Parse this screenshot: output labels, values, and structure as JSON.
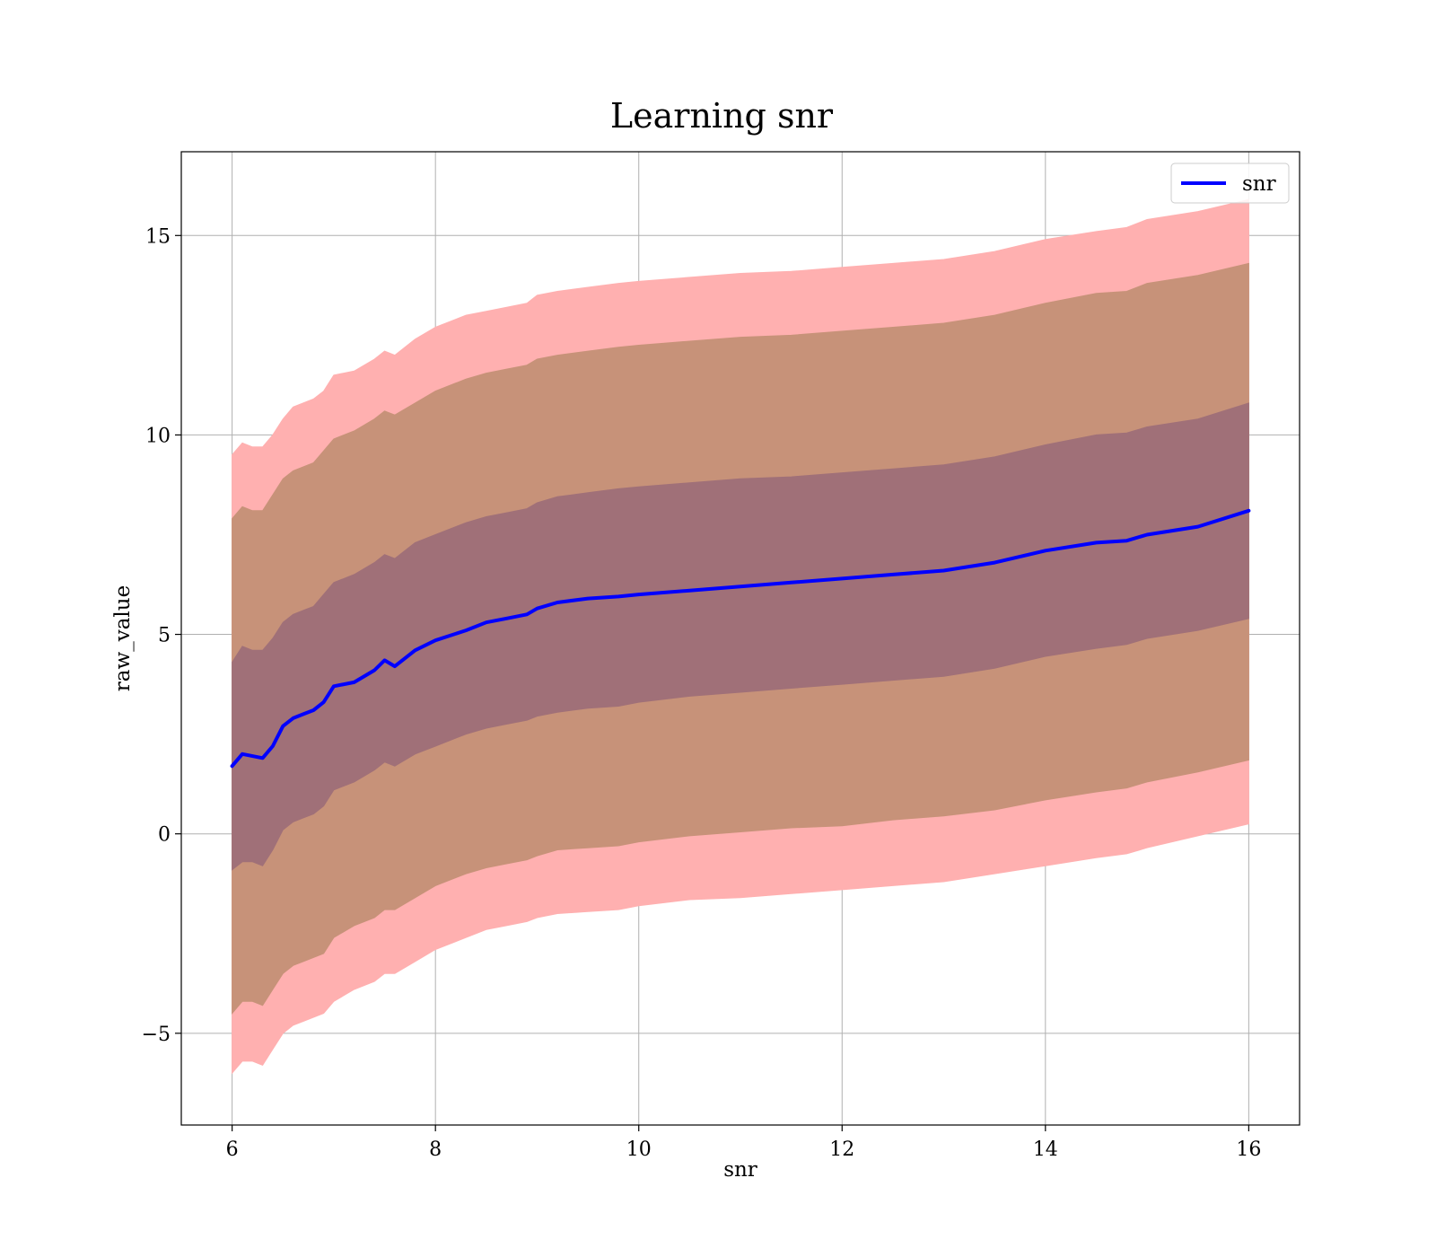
{
  "chart_data": {
    "type": "line",
    "title": "Learning snr",
    "xlabel": "snr",
    "ylabel": "raw_value",
    "xlim": [
      5.5,
      16.5
    ],
    "ylim": [
      -7.3,
      17.1
    ],
    "xticks": [
      6,
      8,
      10,
      12,
      14,
      16
    ],
    "yticks": [
      -5,
      0,
      5,
      10,
      15
    ],
    "xtick_labels": [
      "6",
      "8",
      "10",
      "12",
      "14",
      "16"
    ],
    "ytick_labels": [
      "−5",
      "0",
      "5",
      "10",
      "15"
    ],
    "grid": true,
    "legend": {
      "placement": "top-right",
      "entries": [
        "snr"
      ]
    },
    "colors": {
      "line": "#0000ff",
      "band_outer": "#ffb0b0",
      "band_middle": "#c79279",
      "band_inner": "#a07078"
    },
    "x": [
      6.0,
      6.1,
      6.2,
      6.3,
      6.4,
      6.5,
      6.6,
      6.7,
      6.8,
      6.9,
      7.0,
      7.2,
      7.4,
      7.5,
      7.6,
      7.8,
      8.0,
      8.3,
      8.5,
      8.7,
      8.9,
      9.0,
      9.2,
      9.5,
      9.8,
      10.0,
      10.5,
      11.0,
      11.5,
      12.0,
      12.5,
      13.0,
      13.5,
      14.0,
      14.5,
      14.8,
      15.0,
      15.5,
      16.0
    ],
    "series": [
      {
        "name": "snr",
        "values": [
          1.7,
          2.0,
          1.95,
          1.9,
          2.2,
          2.7,
          2.9,
          3.0,
          3.1,
          3.3,
          3.7,
          3.8,
          4.1,
          4.35,
          4.2,
          4.6,
          4.85,
          5.1,
          5.3,
          5.4,
          5.5,
          5.65,
          5.8,
          5.9,
          5.95,
          6.0,
          6.1,
          6.2,
          6.3,
          6.4,
          6.5,
          6.6,
          6.8,
          7.1,
          7.3,
          7.35,
          7.5,
          7.7,
          8.1
        ]
      }
    ],
    "bands": [
      {
        "role": "outer",
        "lower": [
          -6.0,
          -5.7,
          -5.7,
          -5.8,
          -5.4,
          -5.0,
          -4.8,
          -4.7,
          -4.6,
          -4.5,
          -4.2,
          -3.9,
          -3.7,
          -3.5,
          -3.5,
          -3.2,
          -2.9,
          -2.6,
          -2.4,
          -2.3,
          -2.2,
          -2.1,
          -2.0,
          -1.95,
          -1.9,
          -1.8,
          -1.65,
          -1.6,
          -1.5,
          -1.4,
          -1.3,
          -1.2,
          -1.0,
          -0.8,
          -0.6,
          -0.5,
          -0.35,
          -0.05,
          0.25
        ],
        "upper": [
          9.5,
          9.8,
          9.7,
          9.7,
          10.0,
          10.4,
          10.7,
          10.8,
          10.9,
          11.1,
          11.5,
          11.6,
          11.9,
          12.1,
          12.0,
          12.4,
          12.7,
          13.0,
          13.1,
          13.2,
          13.3,
          13.5,
          13.6,
          13.7,
          13.8,
          13.85,
          13.95,
          14.05,
          14.1,
          14.2,
          14.3,
          14.4,
          14.6,
          14.9,
          15.1,
          15.2,
          15.4,
          15.6,
          15.9
        ]
      },
      {
        "role": "middle",
        "lower": [
          -4.5,
          -4.2,
          -4.2,
          -4.3,
          -3.9,
          -3.5,
          -3.3,
          -3.2,
          -3.1,
          -3.0,
          -2.6,
          -2.3,
          -2.1,
          -1.9,
          -1.9,
          -1.6,
          -1.3,
          -1.0,
          -0.85,
          -0.75,
          -0.65,
          -0.55,
          -0.4,
          -0.35,
          -0.3,
          -0.2,
          -0.05,
          0.05,
          0.15,
          0.2,
          0.35,
          0.45,
          0.6,
          0.85,
          1.05,
          1.15,
          1.3,
          1.55,
          1.85
        ],
        "upper": [
          7.9,
          8.2,
          8.1,
          8.1,
          8.5,
          8.9,
          9.1,
          9.2,
          9.3,
          9.6,
          9.9,
          10.1,
          10.4,
          10.6,
          10.5,
          10.8,
          11.1,
          11.4,
          11.55,
          11.65,
          11.75,
          11.9,
          12.0,
          12.1,
          12.2,
          12.25,
          12.35,
          12.45,
          12.5,
          12.6,
          12.7,
          12.8,
          13.0,
          13.3,
          13.55,
          13.6,
          13.8,
          14.0,
          14.3
        ]
      },
      {
        "role": "inner",
        "lower": [
          -0.9,
          -0.7,
          -0.7,
          -0.8,
          -0.4,
          0.1,
          0.3,
          0.4,
          0.5,
          0.7,
          1.1,
          1.3,
          1.6,
          1.8,
          1.7,
          2.0,
          2.2,
          2.5,
          2.65,
          2.75,
          2.85,
          2.95,
          3.05,
          3.15,
          3.2,
          3.3,
          3.45,
          3.55,
          3.65,
          3.75,
          3.85,
          3.95,
          4.15,
          4.45,
          4.65,
          4.75,
          4.9,
          5.1,
          5.4
        ],
        "upper": [
          4.3,
          4.7,
          4.6,
          4.6,
          4.9,
          5.3,
          5.5,
          5.6,
          5.7,
          6.0,
          6.3,
          6.5,
          6.8,
          7.0,
          6.9,
          7.3,
          7.5,
          7.8,
          7.95,
          8.05,
          8.15,
          8.3,
          8.45,
          8.55,
          8.65,
          8.7,
          8.8,
          8.9,
          8.95,
          9.05,
          9.15,
          9.25,
          9.45,
          9.75,
          10.0,
          10.05,
          10.2,
          10.4,
          10.8
        ]
      }
    ]
  }
}
